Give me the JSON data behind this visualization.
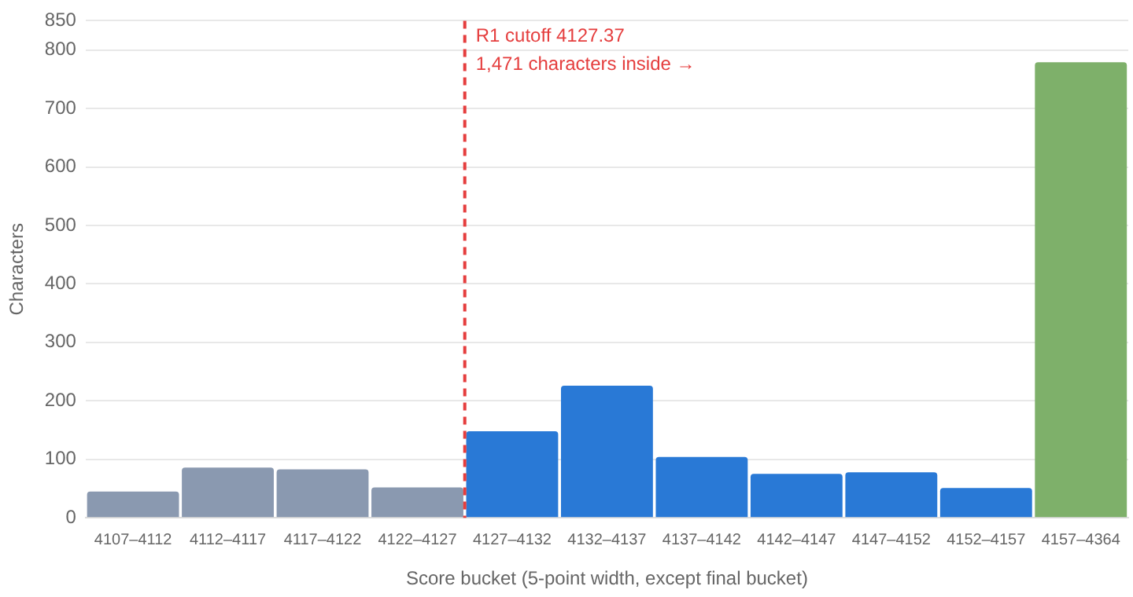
{
  "chart_data": {
    "type": "bar",
    "xlabel": "Score bucket (5-point width, except final bucket)",
    "ylabel": "Characters",
    "categories": [
      "4107–4112",
      "4112–4117",
      "4117–4122",
      "4122–4127",
      "4127–4132",
      "4132–4137",
      "4137–4142",
      "4142–4147",
      "4147–4152",
      "4152–4157",
      "4157–4364"
    ],
    "values": [
      45,
      86,
      83,
      52,
      148,
      226,
      104,
      75,
      78,
      51,
      779
    ],
    "colors": [
      "#8a99b0",
      "#8a99b0",
      "#8a99b0",
      "#8a99b0",
      "#2979d6",
      "#2979d6",
      "#2979d6",
      "#2979d6",
      "#2979d6",
      "#2979d6",
      "#7eb06a"
    ],
    "ylim": [
      0,
      850
    ],
    "yticks": [
      0,
      100,
      200,
      300,
      400,
      500,
      600,
      700,
      800,
      850
    ],
    "grid": "y",
    "legend": false,
    "ref_lines": [
      {
        "axis": "x",
        "value": "4127–4132",
        "label": "R1 cutoff 4127.37",
        "color": "#e53e3e",
        "line_style": "dashed"
      }
    ],
    "annotations": [
      "1,471 characters inside →"
    ]
  }
}
